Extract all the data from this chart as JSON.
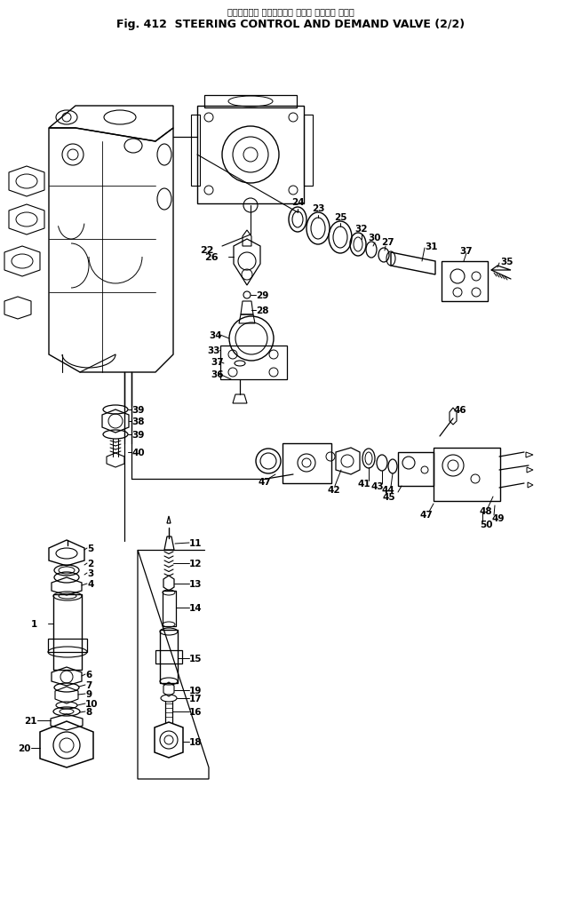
{
  "title_japanese": "ステアリング コントロール および デマンド バルブ",
  "title_english": "Fig. 412  STEERING CONTROL AND DEMAND VALVE (2/2)",
  "bg_color": "#ffffff",
  "line_color": "#000000",
  "figsize": [
    6.54,
    10.12
  ],
  "dpi": 100
}
